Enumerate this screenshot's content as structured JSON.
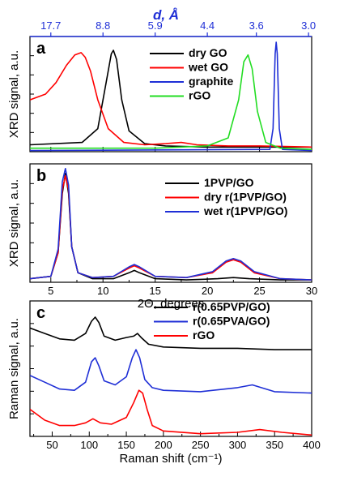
{
  "chart_data": [
    {
      "panel": "a",
      "type": "line",
      "ylabel": "XRD signal, a.u.",
      "xlim": [
        3,
        30
      ],
      "top_axis": {
        "title": "d, Å",
        "tick_labels": [
          "17.7",
          "8.8",
          "5.9",
          "4.4",
          "3.6",
          "3.0"
        ],
        "tick_positions_2theta": [
          5,
          10,
          15,
          20,
          24.7,
          29.7
        ],
        "color": "#1f2fd6"
      },
      "grid": false,
      "legend_placement": "top-right",
      "series": [
        {
          "name": "dry GO",
          "color": "#000000",
          "x": [
            3,
            8,
            9.5,
            10.3,
            10.8,
            11.0,
            11.3,
            11.8,
            12.5,
            14,
            16,
            20,
            25,
            30
          ],
          "y": [
            0.06,
            0.08,
            0.2,
            0.6,
            0.85,
            0.88,
            0.8,
            0.45,
            0.18,
            0.07,
            0.05,
            0.04,
            0.04,
            0.04
          ]
        },
        {
          "name": "wet GO",
          "color": "#ff0000",
          "x": [
            3,
            4.5,
            5.5,
            6.5,
            7.3,
            7.9,
            8.3,
            8.8,
            9.5,
            10.5,
            12,
            14,
            16,
            17.5,
            19,
            22,
            25,
            30
          ],
          "y": [
            0.45,
            0.5,
            0.6,
            0.75,
            0.84,
            0.86,
            0.82,
            0.7,
            0.45,
            0.2,
            0.08,
            0.06,
            0.07,
            0.08,
            0.06,
            0.05,
            0.05,
            0.04
          ]
        },
        {
          "name": "graphite",
          "color": "#1f2fd6",
          "x": [
            3,
            26,
            26.3,
            26.5,
            26.6,
            26.7,
            26.9,
            27.2,
            30
          ],
          "y": [
            0.01,
            0.02,
            0.2,
            0.85,
            0.95,
            0.85,
            0.2,
            0.02,
            0.01
          ]
        },
        {
          "name": "rGO",
          "color": "#22dd22",
          "x": [
            3,
            10,
            15,
            20,
            22,
            23,
            23.5,
            23.9,
            24.3,
            24.8,
            25.6,
            27,
            30
          ],
          "y": [
            0.03,
            0.03,
            0.03,
            0.05,
            0.12,
            0.45,
            0.78,
            0.84,
            0.72,
            0.35,
            0.08,
            0.03,
            0.02
          ]
        }
      ]
    },
    {
      "panel": "b",
      "type": "line",
      "ylabel": "XRD signal, a.u.",
      "xlabel": "2Θ, degrees",
      "xlim": [
        3,
        30
      ],
      "x_ticks": [
        5,
        10,
        15,
        20,
        25,
        30
      ],
      "grid": false,
      "legend_placement": "top-right",
      "series": [
        {
          "name": "1PVP/GO",
          "color": "#000000",
          "x": [
            3,
            5,
            5.7,
            6.1,
            6.4,
            6.7,
            7.0,
            7.6,
            9,
            11,
            12.5,
            13,
            13.5,
            15,
            18,
            21,
            22.5,
            24,
            27,
            30
          ],
          "y": [
            0.03,
            0.05,
            0.25,
            0.75,
            0.92,
            0.75,
            0.3,
            0.08,
            0.03,
            0.03,
            0.08,
            0.1,
            0.08,
            0.03,
            0.02,
            0.03,
            0.04,
            0.03,
            0.02,
            0.02
          ]
        },
        {
          "name": "dry r(1PVP/GO)",
          "color": "#ff0000",
          "x": [
            3,
            5,
            5.7,
            6.1,
            6.4,
            6.7,
            7.0,
            7.6,
            9,
            11,
            12.5,
            13,
            13.5,
            15,
            18,
            20.5,
            21.8,
            22.5,
            23.2,
            24.5,
            27,
            30
          ],
          "y": [
            0.03,
            0.05,
            0.25,
            0.78,
            0.9,
            0.78,
            0.3,
            0.08,
            0.04,
            0.05,
            0.12,
            0.14,
            0.12,
            0.05,
            0.04,
            0.08,
            0.17,
            0.19,
            0.17,
            0.08,
            0.03,
            0.02
          ]
        },
        {
          "name": "wet r(1PVP/GO)",
          "color": "#1f2fd6",
          "x": [
            3,
            5,
            5.7,
            6.1,
            6.4,
            6.7,
            7.0,
            7.6,
            9,
            11,
            12.5,
            13,
            13.5,
            15,
            18,
            20.5,
            21.8,
            22.5,
            23.2,
            24.5,
            27,
            30
          ],
          "y": [
            0.03,
            0.05,
            0.28,
            0.85,
            0.96,
            0.82,
            0.3,
            0.08,
            0.04,
            0.05,
            0.13,
            0.15,
            0.13,
            0.05,
            0.04,
            0.09,
            0.18,
            0.2,
            0.18,
            0.09,
            0.03,
            0.02
          ]
        }
      ]
    },
    {
      "panel": "c",
      "type": "line",
      "ylabel": "Raman signal, a.u.",
      "xlabel": "Raman shift (cm⁻¹)",
      "xlim": [
        20,
        400
      ],
      "x_ticks": [
        50,
        100,
        150,
        200,
        250,
        300,
        350,
        400
      ],
      "grid": false,
      "legend_placement": "top-right",
      "series": [
        {
          "name": "r(0.65PVP/GO)",
          "color": "#000000",
          "x": [
            20,
            40,
            60,
            80,
            95,
            103,
            108,
            113,
            120,
            135,
            150,
            160,
            165,
            170,
            180,
            200,
            250,
            300,
            350,
            400
          ],
          "y": [
            0.8,
            0.76,
            0.72,
            0.71,
            0.76,
            0.85,
            0.88,
            0.84,
            0.74,
            0.71,
            0.73,
            0.74,
            0.76,
            0.73,
            0.68,
            0.66,
            0.65,
            0.65,
            0.64,
            0.64
          ]
        },
        {
          "name": "r(0.65PVA/GO)",
          "color": "#1f2fd6",
          "x": [
            20,
            40,
            60,
            80,
            95,
            103,
            108,
            113,
            120,
            135,
            150,
            158,
            163,
            168,
            175,
            185,
            200,
            250,
            300,
            320,
            350,
            400
          ],
          "y": [
            0.45,
            0.4,
            0.35,
            0.34,
            0.4,
            0.55,
            0.58,
            0.52,
            0.41,
            0.38,
            0.44,
            0.58,
            0.64,
            0.58,
            0.42,
            0.36,
            0.34,
            0.33,
            0.36,
            0.38,
            0.33,
            0.32
          ]
        },
        {
          "name": "rGO",
          "color": "#ff0000",
          "x": [
            20,
            40,
            60,
            80,
            95,
            105,
            115,
            130,
            150,
            160,
            167,
            172,
            178,
            185,
            200,
            250,
            300,
            330,
            360,
            400
          ],
          "y": [
            0.2,
            0.12,
            0.08,
            0.08,
            0.1,
            0.13,
            0.1,
            0.09,
            0.14,
            0.25,
            0.34,
            0.32,
            0.2,
            0.08,
            0.04,
            0.02,
            0.03,
            0.05,
            0.03,
            0.01
          ]
        }
      ]
    }
  ]
}
